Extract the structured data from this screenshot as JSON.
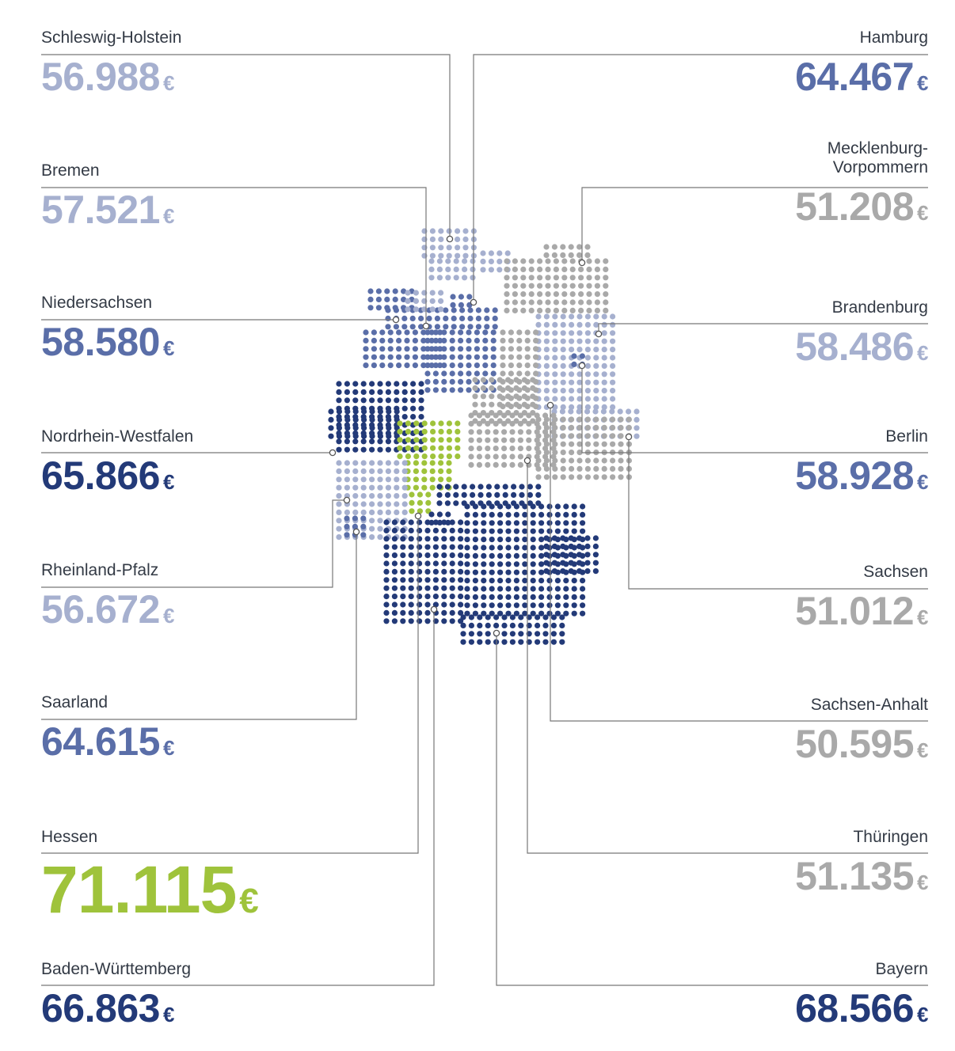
{
  "colors": {
    "very_high": "#233a78",
    "high": "#5a6ea8",
    "medium": "#a6b0cf",
    "low": "#a9a9a9",
    "highlight": "#9fc33b",
    "line": "#777777"
  },
  "currency_symbol": "€",
  "regions": [
    {
      "name": "Schleswig-Holstein",
      "value": "56.988",
      "tier": "medium"
    },
    {
      "name": "Bremen",
      "value": "57.521",
      "tier": "medium"
    },
    {
      "name": "Niedersachsen",
      "value": "58.580",
      "tier": "high"
    },
    {
      "name": "Nordrhein-Westfalen",
      "value": "65.866",
      "tier": "very_high"
    },
    {
      "name": "Rheinland-Pfalz",
      "value": "56.672",
      "tier": "medium"
    },
    {
      "name": "Saarland",
      "value": "64.615",
      "tier": "high"
    },
    {
      "name": "Hessen",
      "value": "71.115",
      "tier": "highlight"
    },
    {
      "name": "Baden-Württemberg",
      "value": "66.863",
      "tier": "very_high"
    },
    {
      "name": "Hamburg",
      "value": "64.467",
      "tier": "high"
    },
    {
      "name": "Mecklenburg-\nVorpommern",
      "value": "51.208",
      "tier": "low"
    },
    {
      "name": "Brandenburg",
      "value": "58.486",
      "tier": "medium"
    },
    {
      "name": "Berlin",
      "value": "58.928",
      "tier": "high"
    },
    {
      "name": "Sachsen",
      "value": "51.012",
      "tier": "low"
    },
    {
      "name": "Sachsen-Anhalt",
      "value": "50.595",
      "tier": "low"
    },
    {
      "name": "Thüringen",
      "value": "51.135",
      "tier": "low"
    },
    {
      "name": "Bayern",
      "value": "68.566",
      "tier": "very_high"
    }
  ]
}
